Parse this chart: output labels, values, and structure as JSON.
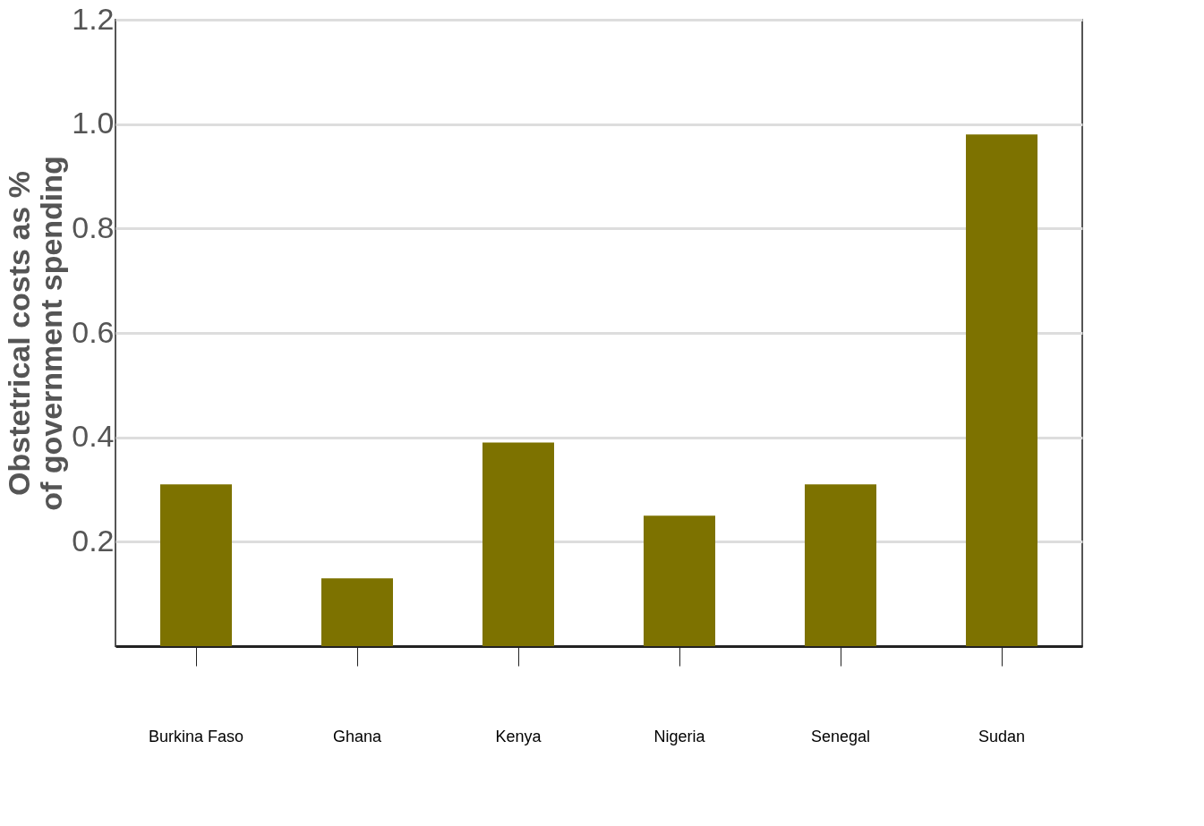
{
  "chart_data": {
    "type": "bar",
    "ylabel": "Obstetrical  costs as %\nof government spending",
    "categories": [
      "Burkina Faso",
      "Ghana",
      "Kenya",
      "Nigeria",
      "Senegal",
      "Sudan"
    ],
    "values": [
      0.31,
      0.13,
      0.39,
      0.25,
      0.31,
      0.98
    ],
    "color": "#7d7200",
    "ylim": [
      0,
      1.2
    ],
    "yticks": [
      0.2,
      0.4,
      0.6,
      0.8,
      {
        "value": 1.0,
        "label": "1.0"
      },
      1.2
    ],
    "grid": "y"
  }
}
